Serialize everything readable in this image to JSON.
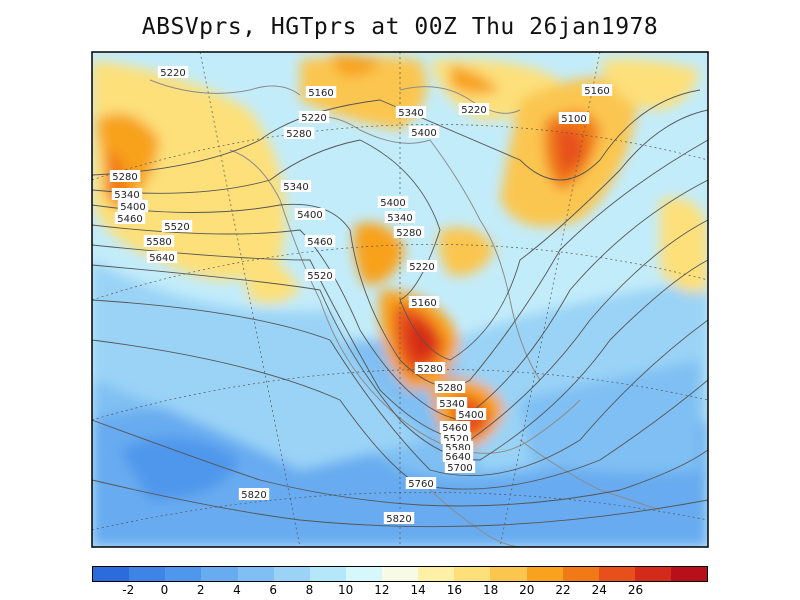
{
  "title": "ABSVprs, HGTprs at 00Z Thu 26jan1978",
  "map": {
    "contour_labels": [
      "5100",
      "5160",
      "5160",
      "5160",
      "5220",
      "5220",
      "5220",
      "5220",
      "5280",
      "5280",
      "5280",
      "5280",
      "5280",
      "5340",
      "5340",
      "5340",
      "5340",
      "5340",
      "5400",
      "5400",
      "5400",
      "5400",
      "5400",
      "5460",
      "5460",
      "5460",
      "5520",
      "5520",
      "5520",
      "5580",
      "5580",
      "5640",
      "5640",
      "5700",
      "5760",
      "5820",
      "5820"
    ]
  },
  "colorbar": {
    "colors": [
      "#2c6bdc",
      "#3d84e6",
      "#4f97ec",
      "#67abf0",
      "#7fbff3",
      "#9ad3f6",
      "#b4e7f9",
      "#d6f7fb",
      "#f7fbe6",
      "#fff0a8",
      "#fde07a",
      "#fbc64f",
      "#f8a21e",
      "#f17a16",
      "#e7501a",
      "#d42a19",
      "#b8101a"
    ],
    "labels": [
      "-2",
      "0",
      "2",
      "4",
      "6",
      "8",
      "10",
      "12",
      "14",
      "16",
      "18",
      "20",
      "22",
      "24",
      "26"
    ]
  }
}
